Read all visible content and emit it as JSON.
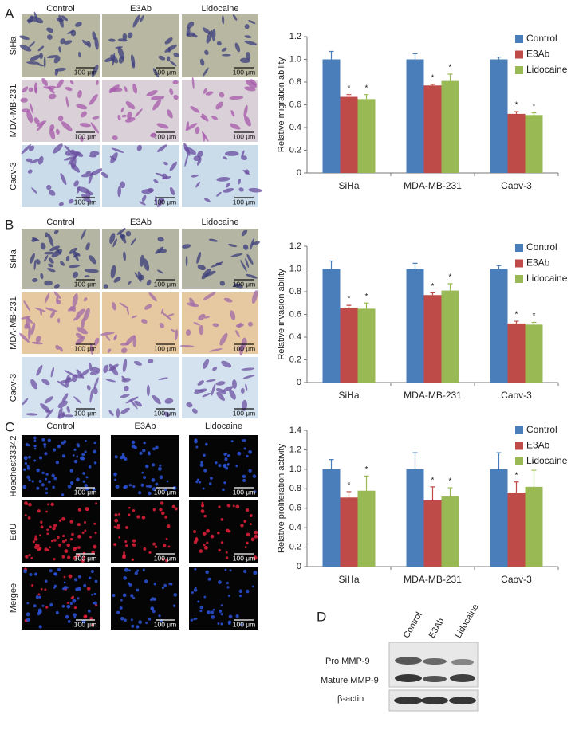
{
  "panels": {
    "A": {
      "label": "A",
      "columns": [
        "Control",
        "E3Ab",
        "Lidocaine"
      ],
      "rows": [
        "SiHa",
        "MDA-MB-231",
        "Caov-3"
      ],
      "scale_bar": "100 μm"
    },
    "B": {
      "label": "B",
      "columns": [
        "Control",
        "E3Ab",
        "Lidocaine"
      ],
      "rows": [
        "SiHa",
        "MDA-MB-231",
        "Caov-3"
      ],
      "scale_bar": "100 μm"
    },
    "C": {
      "label": "C",
      "columns": [
        "Control",
        "E3Ab",
        "Lidocaine"
      ],
      "rows": [
        "Hoechest33342",
        "EdU",
        "Mergee"
      ],
      "scale_bar": "100 μm"
    }
  },
  "blot": {
    "label": "D",
    "lanes": [
      "Control",
      "E3Ab",
      "Lidocaine"
    ],
    "bands": [
      "Pro MMP-9",
      "Mature MMP-9",
      "β-actin"
    ]
  },
  "chart_data": [
    {
      "type": "bar",
      "y_label": "Relative migration ability",
      "categories": [
        "SiHa",
        "MDA-MB-231",
        "Caov-3"
      ],
      "series": [
        {
          "name": "Control",
          "color": "#4a7ebb",
          "values": [
            1.0,
            1.0,
            1.0
          ],
          "errors": [
            0.07,
            0.05,
            0.02
          ]
        },
        {
          "name": "E3Ab",
          "color": "#be4b48",
          "values": [
            0.67,
            0.77,
            0.52
          ],
          "errors": [
            0.02,
            0.01,
            0.02
          ],
          "significance": [
            "*",
            "*",
            "*"
          ]
        },
        {
          "name": "Lidocaine",
          "color": "#98b954",
          "values": [
            0.65,
            0.81,
            0.51
          ],
          "errors": [
            0.04,
            0.06,
            0.02
          ],
          "significance": [
            "*",
            "*",
            "*"
          ]
        }
      ],
      "ylim": [
        0,
        1.2
      ],
      "yticks": [
        0,
        0.2,
        0.4,
        0.6,
        0.8,
        {
          "value": 1,
          "label": "1.0"
        },
        1.2
      ],
      "grid": false,
      "legend": "right"
    },
    {
      "type": "bar",
      "y_label": "Relative invasion ability",
      "categories": [
        "SiHa",
        "MDA-MB-231",
        "Caov-3"
      ],
      "series": [
        {
          "name": "Control",
          "color": "#4a7ebb",
          "values": [
            1.0,
            1.0,
            1.0
          ],
          "errors": [
            0.07,
            0.05,
            0.03
          ]
        },
        {
          "name": "E3Ab",
          "color": "#be4b48",
          "values": [
            0.66,
            0.77,
            0.52
          ],
          "errors": [
            0.02,
            0.02,
            0.02
          ],
          "significance": [
            "*",
            "*",
            "*"
          ]
        },
        {
          "name": "Lidocaine",
          "color": "#98b954",
          "values": [
            0.65,
            0.81,
            0.51
          ],
          "errors": [
            0.05,
            0.06,
            0.02
          ],
          "significance": [
            "*",
            "*",
            "*"
          ]
        }
      ],
      "ylim": [
        0,
        1.2
      ],
      "yticks": [
        0,
        0.2,
        0.4,
        0.6,
        0.8,
        {
          "value": 1,
          "label": "1.0"
        },
        1.2
      ],
      "grid": false,
      "legend": "right"
    },
    {
      "type": "bar",
      "y_label": "Relative proliferation activity",
      "categories": [
        "SiHa",
        "MDA-MB-231",
        "Caov-3"
      ],
      "series": [
        {
          "name": "Control",
          "color": "#4a7ebb",
          "values": [
            1.0,
            1.0,
            1.0
          ],
          "errors": [
            0.1,
            0.17,
            0.17
          ]
        },
        {
          "name": "E3Ab",
          "color": "#be4b48",
          "values": [
            0.71,
            0.68,
            0.76
          ],
          "errors": [
            0.06,
            0.14,
            0.11
          ],
          "significance": [
            "*",
            "*",
            "*"
          ]
        },
        {
          "name": "Lidocaine",
          "color": "#98b954",
          "values": [
            0.78,
            0.72,
            0.82
          ],
          "errors": [
            0.15,
            0.09,
            0.17
          ],
          "significance": [
            "*",
            "*",
            "*"
          ]
        }
      ],
      "ylim": [
        0,
        1.4
      ],
      "yticks": [
        0,
        0.2,
        0.4,
        0.6,
        0.8,
        {
          "value": 1,
          "label": "1.0"
        },
        1.2,
        1.4
      ],
      "grid": false,
      "legend": "right"
    }
  ]
}
